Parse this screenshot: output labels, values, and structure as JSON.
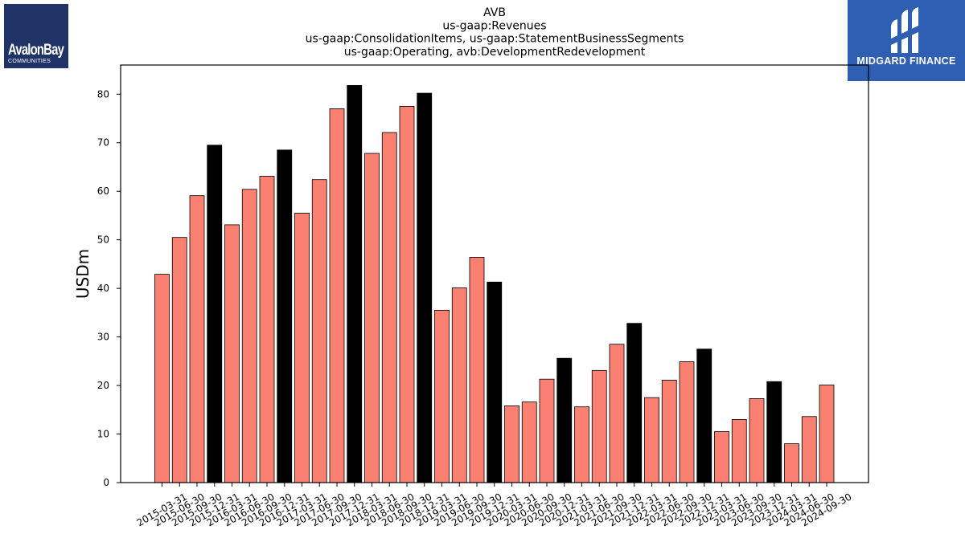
{
  "logos": {
    "left": {
      "name": "AvalonBay",
      "subtitle": "COMMUNITIES",
      "background": "#1f3366"
    },
    "right": {
      "name": "MIDGARD FINANCE",
      "background": "#2f5fb3"
    }
  },
  "chart_data": {
    "type": "bar",
    "title_lines": [
      "AVB",
      "us-gaap:Revenues",
      "us-gaap:ConsolidationItems, us-gaap:StatementBusinessSegments",
      "us-gaap:Operating, avb:DevelopmentRedevelopment"
    ],
    "xlabel": "",
    "ylabel": "USDm",
    "ylim": [
      0,
      86
    ],
    "yticks": [
      0,
      10,
      20,
      30,
      40,
      50,
      60,
      70,
      80
    ],
    "grid": false,
    "colors": {
      "quarter": "#fa8072",
      "year_end": "#000000",
      "edge": "#000000"
    },
    "categories": [
      "2015-03-31",
      "2015-06-30",
      "2015-09-30",
      "2015-12-31",
      "2016-03-31",
      "2016-06-30",
      "2016-09-30",
      "2016-12-31",
      "2017-03-31",
      "2017-06-30",
      "2017-09-30",
      "2017-12-31",
      "2018-03-31",
      "2018-06-30",
      "2018-09-30",
      "2018-12-31",
      "2019-03-31",
      "2019-06-30",
      "2019-09-30",
      "2019-12-31",
      "2020-03-31",
      "2020-06-30",
      "2020-09-30",
      "2020-12-31",
      "2021-03-31",
      "2021-06-30",
      "2021-09-30",
      "2021-12-31",
      "2022-03-31",
      "2022-06-30",
      "2022-09-30",
      "2022-12-31",
      "2023-03-31",
      "2023-06-30",
      "2023-09-30",
      "2023-12-31",
      "2024-03-31",
      "2024-06-30",
      "2024-09-30"
    ],
    "values": [
      42.9,
      50.5,
      59.1,
      69.5,
      53.1,
      60.4,
      63.1,
      68.5,
      55.5,
      62.4,
      77.0,
      81.8,
      67.8,
      72.1,
      77.5,
      80.2,
      35.5,
      40.1,
      46.4,
      41.3,
      15.8,
      16.6,
      21.3,
      25.6,
      15.6,
      23.1,
      28.5,
      32.8,
      17.5,
      21.1,
      24.9,
      27.5,
      10.5,
      13.0,
      17.3,
      20.8,
      8.0,
      13.6,
      20.1
    ]
  }
}
